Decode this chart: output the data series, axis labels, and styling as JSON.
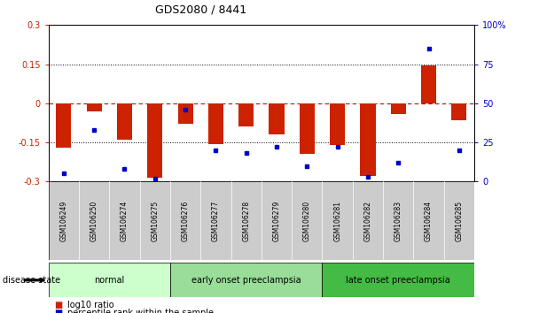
{
  "title": "GDS2080 / 8441",
  "samples": [
    "GSM106249",
    "GSM106250",
    "GSM106274",
    "GSM106275",
    "GSM106276",
    "GSM106277",
    "GSM106278",
    "GSM106279",
    "GSM106280",
    "GSM106281",
    "GSM106282",
    "GSM106283",
    "GSM106284",
    "GSM106285"
  ],
  "log10_ratio": [
    -0.17,
    -0.03,
    -0.14,
    -0.285,
    -0.08,
    -0.155,
    -0.09,
    -0.12,
    -0.195,
    -0.16,
    -0.28,
    -0.04,
    0.145,
    -0.065
  ],
  "percentile_rank": [
    5,
    33,
    8,
    2,
    46,
    20,
    18,
    22,
    10,
    22,
    3,
    12,
    85,
    20
  ],
  "groups": [
    {
      "label": "normal",
      "start": 0,
      "end": 4,
      "color": "#ccffcc"
    },
    {
      "label": "early onset preeclampsia",
      "start": 4,
      "end": 9,
      "color": "#99dd99"
    },
    {
      "label": "late onset preeclampsia",
      "start": 9,
      "end": 14,
      "color": "#44bb44"
    }
  ],
  "ylim_left": [
    -0.3,
    0.3
  ],
  "ylim_right": [
    0,
    100
  ],
  "bar_color": "#cc2200",
  "dot_color": "#0000cc",
  "zero_line_color": "#cc0000",
  "background_color": "#ffffff",
  "tick_bg_color": "#cccccc",
  "yticks_left": [
    -0.3,
    -0.15,
    0,
    0.15,
    0.3
  ],
  "yticks_right": [
    0,
    25,
    50,
    75,
    100
  ],
  "ytick_labels_left": [
    "-0.3",
    "-0.15",
    "0",
    "0.15",
    "0.3"
  ],
  "ytick_labels_right": [
    "0",
    "25",
    "50",
    "75",
    "100%"
  ]
}
